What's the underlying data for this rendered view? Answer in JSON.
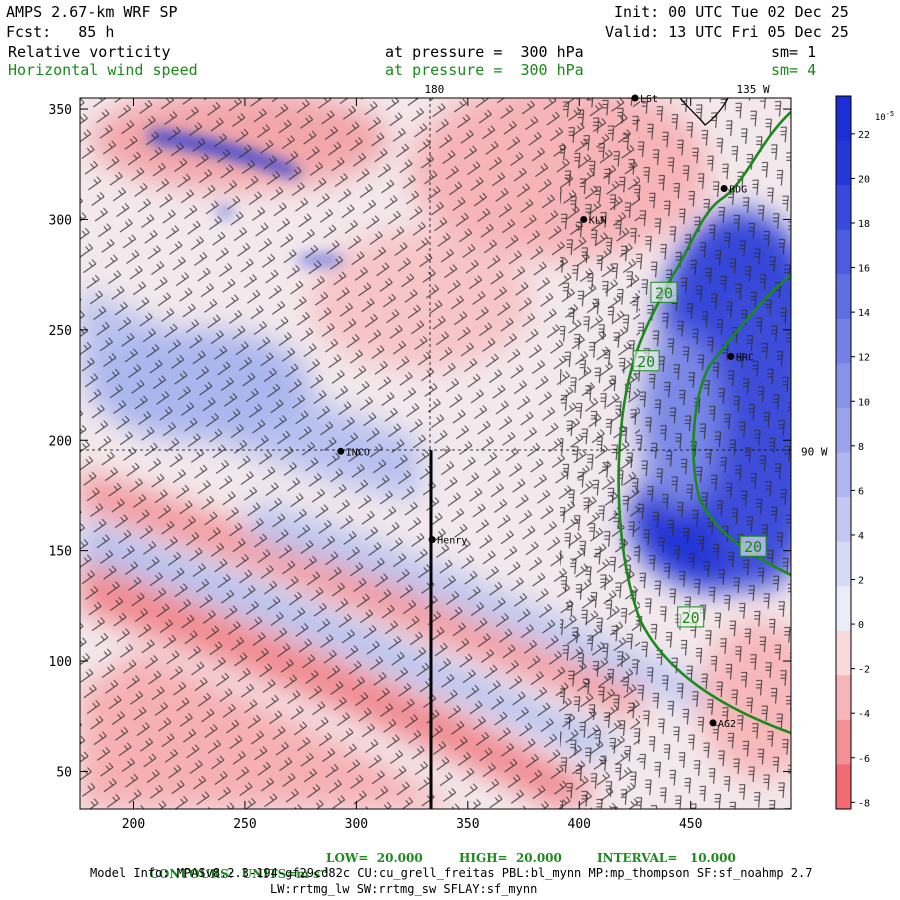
{
  "header": {
    "model": "AMPS 2.67-km WRF SP",
    "fcst": "Fcst:   85 h",
    "init": "Init: 00 UTC Tue 02 Dec 25",
    "valid": "Valid: 13 UTC Fri 05 Dec 25",
    "field1": "Relative vorticity",
    "field1_level": "at pressure =  300 hPa",
    "field1_sm": "sm= 1",
    "field2": "Horizontal wind speed",
    "field2_level": "at pressure =  300 hPa",
    "field2_sm": "sm= 4"
  },
  "footer": {
    "contours": "CONTOURS:  UNITS=m s",
    "contours_exp": "-1",
    "low": "LOW=  20.000",
    "high": "HIGH=  20.000",
    "interval": "INTERVAL=   10.000",
    "model_info_1": "Model Info: MPASv8.2.3-194-gf29cd82c CU:cu_grell_freitas PBL:bl_mynn MP:mp_thompson SF:sf_noahmp 2.7",
    "model_info_2": "LW:rrtmg_lw SW:rrtmg_sw SFLAY:sf_mynn"
  },
  "colors": {
    "blue_strong": "#1a2fd6",
    "blue_light": "#c8d0f4",
    "red_strong": "#ef5a60",
    "red_light": "#f8cfd0",
    "contour_green": "#1a8a1a"
  },
  "chart_data": {
    "type": "heatmap",
    "title": "Relative vorticity / Horizontal wind speed at 300 hPa",
    "xlim": [
      176,
      495
    ],
    "ylim": [
      33,
      355
    ],
    "x_ticks": [
      200,
      250,
      300,
      350,
      400,
      450
    ],
    "y_ticks": [
      50,
      100,
      150,
      200,
      250,
      300,
      350
    ],
    "top_labels": [
      {
        "x": 335,
        "label": "180"
      },
      {
        "x": 478,
        "label": "135 W"
      }
    ],
    "right_labels": [
      {
        "y": 195,
        "label": "90 W"
      }
    ],
    "colorbar": {
      "unit": "10",
      "unit_exp": "-5",
      "unit_suffix": " s",
      "unit_suffix_exp": "-1",
      "levels": [
        22,
        20,
        18,
        16,
        14,
        12,
        10,
        8,
        6,
        4,
        2,
        0,
        -2,
        -4,
        -6,
        -8
      ],
      "tick_labels": [
        "22",
        "20",
        "18",
        "16",
        "14",
        "12",
        "10",
        "8",
        "6",
        "4",
        "2",
        "0",
        "-2",
        "-4",
        "-6",
        "-8"
      ]
    },
    "stations": [
      {
        "name": "LSt",
        "x": 425,
        "y": 355
      },
      {
        "name": "BDG",
        "x": 465,
        "y": 314
      },
      {
        "name": "KLN",
        "x": 402,
        "y": 300
      },
      {
        "name": "HRC",
        "x": 468,
        "y": 238
      },
      {
        "name": "INCO",
        "x": 293,
        "y": 195
      },
      {
        "name": "Henry",
        "x": 334,
        "y": 155
      },
      {
        "name": "AG2",
        "x": 460,
        "y": 72
      }
    ],
    "contour_labels": [
      {
        "x": 438,
        "y": 267,
        "label": "20"
      },
      {
        "x": 430,
        "y": 236,
        "label": "20"
      },
      {
        "x": 450,
        "y": 120,
        "label": "20"
      },
      {
        "x": 478,
        "y": 152,
        "label": "20"
      }
    ],
    "reference_lines": {
      "vertical_x": 334,
      "horizontal_y": 195
    }
  }
}
